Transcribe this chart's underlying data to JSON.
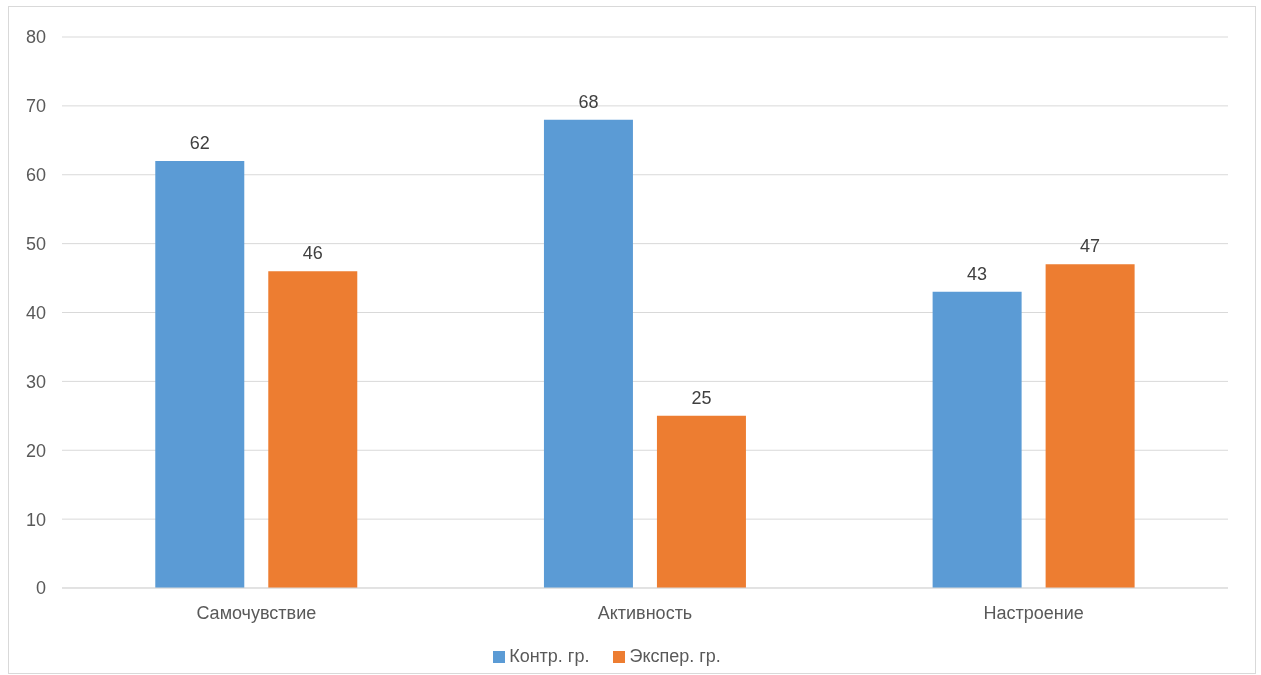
{
  "chart_data": {
    "type": "bar",
    "categories": [
      "Самочувствие",
      "Активность",
      "Настроение"
    ],
    "series": [
      {
        "name": "Контр. гр.",
        "color": "#5b9bd5",
        "values": [
          62,
          68,
          43
        ]
      },
      {
        "name": "Экспер. гр.",
        "color": "#ed7d31",
        "values": [
          46,
          25,
          47
        ]
      }
    ],
    "ylim": [
      0,
      80
    ],
    "yticks": [
      0,
      10,
      20,
      30,
      40,
      50,
      60,
      70,
      80
    ],
    "grid": "y",
    "legend": "bottom",
    "data_labels": true
  }
}
